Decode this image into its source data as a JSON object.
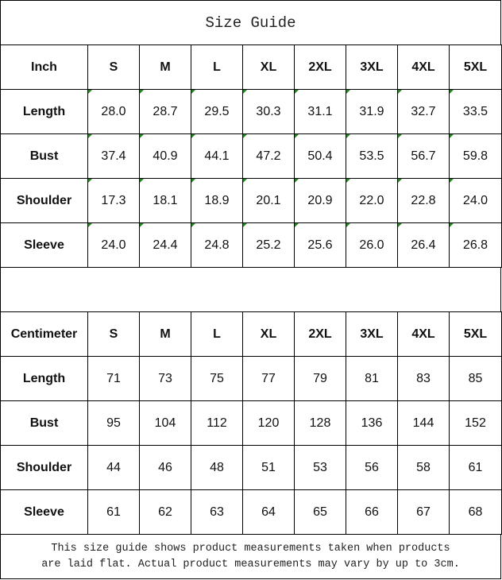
{
  "title": "Size Guide",
  "inch_table": {
    "header": [
      "Inch",
      "S",
      "M",
      "L",
      "XL",
      "2XL",
      "3XL",
      "4XL",
      "5XL"
    ],
    "rows": [
      [
        "Length",
        "28.0",
        "28.7",
        "29.5",
        "30.3",
        "31.1",
        "31.9",
        "32.7",
        "33.5"
      ],
      [
        "Bust",
        "37.4",
        "40.9",
        "44.1",
        "47.2",
        "50.4",
        "53.5",
        "56.7",
        "59.8"
      ],
      [
        "Shoulder",
        "17.3",
        "18.1",
        "18.9",
        "20.1",
        "20.9",
        "22.0",
        "22.8",
        "24.0"
      ],
      [
        "Sleeve",
        "24.0",
        "24.4",
        "24.8",
        "25.2",
        "25.6",
        "26.0",
        "26.4",
        "26.8"
      ]
    ]
  },
  "cm_table": {
    "header": [
      "Centimeter",
      "S",
      "M",
      "L",
      "XL",
      "2XL",
      "3XL",
      "4XL",
      "5XL"
    ],
    "rows": [
      [
        "Length",
        "71",
        "73",
        "75",
        "77",
        "79",
        "81",
        "83",
        "85"
      ],
      [
        "Bust",
        "95",
        "104",
        "112",
        "120",
        "128",
        "136",
        "144",
        "152"
      ],
      [
        "Shoulder",
        "44",
        "46",
        "48",
        "51",
        "53",
        "56",
        "58",
        "61"
      ],
      [
        "Sleeve",
        "61",
        "62",
        "63",
        "64",
        "65",
        "66",
        "67",
        "68"
      ]
    ]
  },
  "note": {
    "line1": "This size guide shows product measurements taken when products",
    "line2": "are laid flat. Actual product measurements may vary by up to 3cm."
  },
  "colors": {
    "cell_flag": "#1a8a1a",
    "border": "#000000"
  }
}
